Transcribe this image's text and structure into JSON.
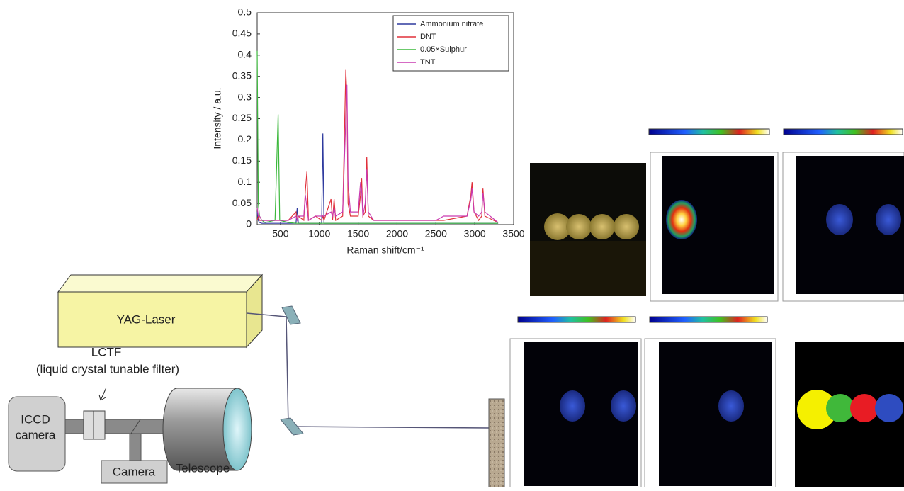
{
  "chart_data": {
    "type": "line",
    "xlabel": "Raman shift/cm⁻¹",
    "ylabel": "Intensity / a.u.",
    "x": [
      200,
      215,
      230,
      260,
      300,
      430,
      470,
      490,
      600,
      700,
      715,
      730,
      800,
      820,
      840,
      860,
      950,
      1030,
      1045,
      1060,
      1150,
      1170,
      1190,
      1210,
      1300,
      1340,
      1355,
      1370,
      1400,
      1500,
      1530,
      1545,
      1560,
      1590,
      1610,
      1630,
      1700,
      2500,
      2600,
      2900,
      2950,
      2965,
      2990,
      3050,
      3090,
      3105,
      3130,
      3300
    ],
    "series": [
      {
        "name": "Ammonium nitrate",
        "color": "#2e3a9e",
        "values": [
          0.03,
          0.01,
          0.005,
          0.003,
          0.003,
          0.003,
          0.003,
          0.003,
          0.003,
          0.003,
          0.04,
          0.003,
          0.003,
          0.003,
          0.003,
          0.003,
          0.003,
          0.003,
          0.215,
          0.003,
          0.003,
          0.003,
          0.003,
          0.003,
          0.003,
          0.003,
          0.003,
          0.003,
          0.003,
          0.003,
          0.003,
          0.003,
          0.003,
          0.003,
          0.003,
          0.003,
          0.003,
          0.003,
          0.003,
          0.003,
          0.003,
          0.003,
          0.003,
          0.003,
          0.003,
          0.003,
          0.003,
          0.003
        ]
      },
      {
        "name": "DNT",
        "color": "#e0303a",
        "values": [
          0.01,
          0.02,
          0.01,
          0.01,
          0.01,
          0.01,
          0.01,
          0.01,
          0.01,
          0.03,
          0.01,
          0.02,
          0.01,
          0.08,
          0.125,
          0.01,
          0.02,
          0.01,
          0.02,
          0.01,
          0.06,
          0.01,
          0.06,
          0.01,
          0.02,
          0.365,
          0.3,
          0.05,
          0.02,
          0.02,
          0.07,
          0.11,
          0.02,
          0.03,
          0.16,
          0.02,
          0.01,
          0.01,
          0.01,
          0.02,
          0.07,
          0.1,
          0.03,
          0.01,
          0.02,
          0.085,
          0.02,
          0.005
        ]
      },
      {
        "name": "0.05×Sulphur",
        "color": "#3cb83c",
        "values": [
          0.41,
          0.05,
          0.02,
          0.01,
          0.005,
          0.01,
          0.26,
          0.01,
          0.005,
          0.003,
          0.003,
          0.003,
          0.003,
          0.003,
          0.003,
          0.003,
          0.003,
          0.003,
          0.003,
          0.003,
          0.003,
          0.003,
          0.003,
          0.003,
          0.003,
          0.003,
          0.003,
          0.003,
          0.003,
          0.003,
          0.003,
          0.003,
          0.003,
          0.003,
          0.003,
          0.003,
          0.003,
          0.003,
          0.003,
          0.003,
          0.003,
          0.003,
          0.003,
          0.003,
          0.003,
          0.003,
          0.003,
          0.003
        ]
      },
      {
        "name": "TNT",
        "color": "#c93ab0",
        "values": [
          0.04,
          0.02,
          0.02,
          0.01,
          0.01,
          0.01,
          0.01,
          0.01,
          0.01,
          0.02,
          0.01,
          0.02,
          0.02,
          0.07,
          0.04,
          0.01,
          0.02,
          0.02,
          0.02,
          0.02,
          0.03,
          0.02,
          0.04,
          0.02,
          0.03,
          0.25,
          0.33,
          0.1,
          0.03,
          0.03,
          0.1,
          0.08,
          0.02,
          0.05,
          0.13,
          0.03,
          0.01,
          0.01,
          0.02,
          0.02,
          0.06,
          0.085,
          0.03,
          0.02,
          0.03,
          0.075,
          0.03,
          0.005
        ]
      }
    ],
    "xlim": [
      200,
      3500
    ],
    "xticks": [
      500,
      1000,
      1500,
      2000,
      2500,
      3000,
      3500
    ],
    "ylim": [
      0,
      0.5
    ],
    "yticks": [
      0,
      0.05,
      0.1,
      0.15,
      0.2,
      0.25,
      0.3,
      0.35,
      0.4,
      0.45,
      0.5
    ],
    "legend": "upper right"
  },
  "diagram": {
    "laser": "YAG-Laser",
    "filter": "LCTF",
    "filter_full": "(liquid crystal tunable filter)",
    "iccd": [
      "ICCD",
      "camera"
    ],
    "camera": "Camera",
    "telescope": "Telescope"
  }
}
